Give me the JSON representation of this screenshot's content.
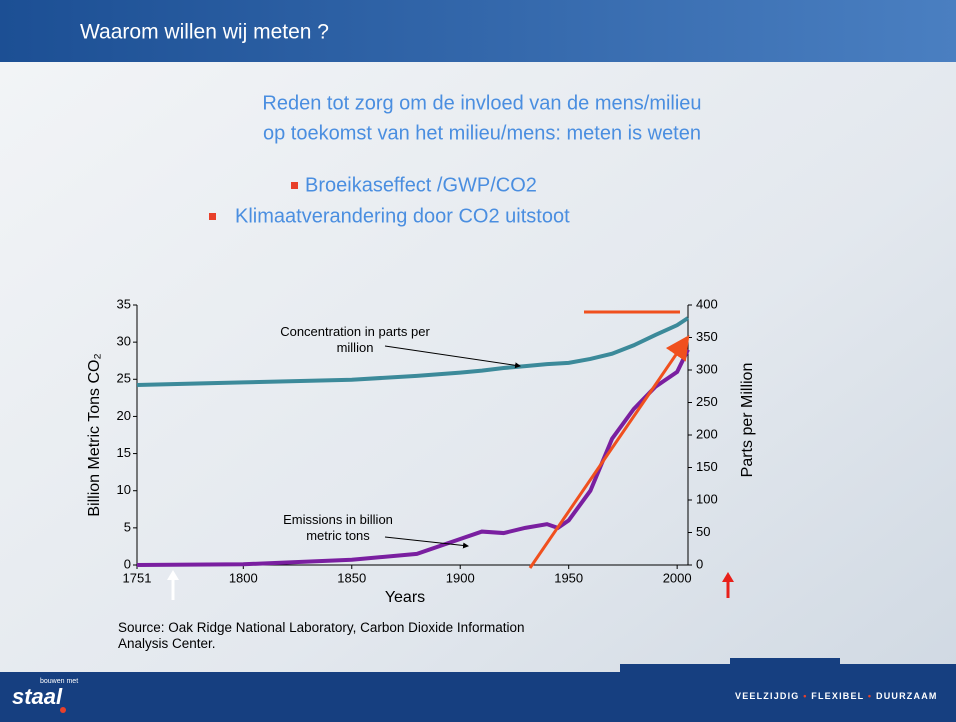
{
  "header": {
    "title": "Waarom willen wij meten ?"
  },
  "intro": [
    "Reden tot zorg om de invloed van de mens/milieu",
    "op toekomst van het milieu/mens: meten is weten"
  ],
  "bullets": [
    "Broeikaseffect /GWP/CO2",
    "Klimaatverandering door CO2 uitstoot"
  ],
  "chart_data": {
    "type": "line",
    "x_label": "Years",
    "y_label": "Billion Metric Tons CO₂",
    "y2_label": "Parts per Million",
    "x": [
      1751,
      1800,
      1850,
      1880,
      1900,
      1910,
      1920,
      1930,
      1940,
      1945,
      1950,
      1960,
      1970,
      1980,
      1990,
      2000,
      2005
    ],
    "series": [
      {
        "name": "Concentration in parts per million",
        "color": "#3c8a9a",
        "axis": "y2",
        "values": [
          277,
          281,
          285,
          291,
          296,
          299,
          303,
          306,
          309,
          310,
          311,
          317,
          325,
          338,
          354,
          369,
          380
        ]
      },
      {
        "name": "Emissions in billion metric tons",
        "color": "#7a1fa0",
        "values": [
          0,
          0.1,
          0.7,
          1.5,
          3.5,
          4.5,
          4.3,
          5,
          5.5,
          5,
          6,
          10,
          17,
          21,
          24,
          26,
          29
        ]
      }
    ],
    "xlim": [
      1751,
      2005
    ],
    "xticks": [
      1751,
      1800,
      1850,
      1900,
      1950,
      2000
    ],
    "ylim": [
      0,
      35
    ],
    "yticks": [
      0,
      5,
      10,
      15,
      20,
      25,
      30,
      35
    ],
    "y2lim": [
      0,
      400
    ],
    "y2ticks": [
      0,
      50,
      100,
      150,
      200,
      250,
      300,
      350,
      400
    ]
  },
  "source": "Source: Oak Ridge National Laboratory, Carbon Dioxide Information Analysis Center.",
  "footer": {
    "logo": "staal",
    "logo_small": "bouwen met",
    "slogan": [
      "VEELZIJDIG",
      "FLEXIBEL",
      "DUURZAAM"
    ]
  }
}
